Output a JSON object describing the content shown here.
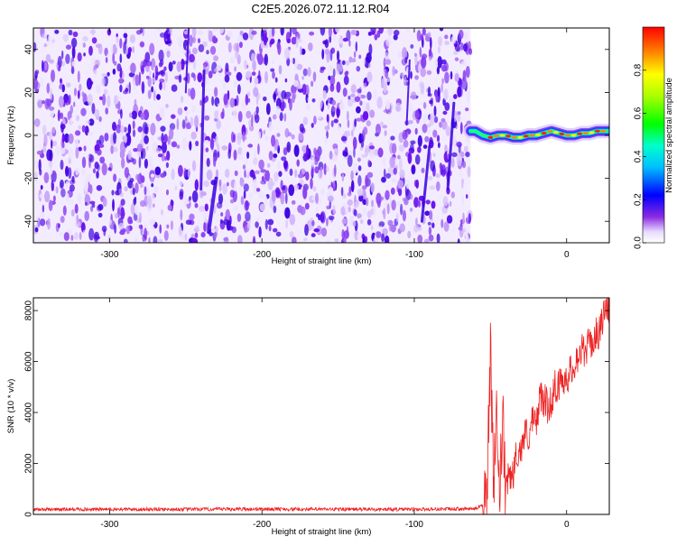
{
  "title": "C2E5.2026.072.11.12.R04",
  "colors": {
    "snr_line": "#ee2222",
    "spectrogram_noise": "#6a10ee",
    "spectrogram_noise_light": "#d9c4fb"
  },
  "chart_data": [
    {
      "type": "heatmap",
      "title": "C2E5.2026.072.11.12.R04",
      "xlabel": "Height of straight line (km)",
      "ylabel": "Frequency (Hz)",
      "xlim": [
        -350,
        28
      ],
      "ylim": [
        -50,
        50
      ],
      "x_ticks": [
        "-300",
        "-200",
        "-100",
        "0"
      ],
      "y_ticks": [
        "-40",
        "-20",
        "0",
        "20",
        "40"
      ],
      "grid": false,
      "noise_region_x": [
        -350,
        -63
      ],
      "signal_track": {
        "x": [
          -63,
          -60,
          -55,
          -50,
          -45,
          -40,
          -35,
          -30,
          -25,
          -20,
          -15,
          -10,
          -5,
          0,
          5,
          10,
          15,
          20,
          28
        ],
        "frequency_hz": [
          2,
          2,
          0,
          -1,
          0,
          0,
          -1,
          -1,
          0,
          0,
          1,
          2,
          1,
          0,
          0,
          1,
          1,
          2,
          2
        ]
      },
      "colorbar": {
        "label": "Normalized spectral amplitude",
        "range": [
          0,
          1
        ],
        "ticks": [
          "0.0",
          "0.2",
          "0.4",
          "0.6",
          "0.8"
        ],
        "colormap": "rainbow"
      }
    },
    {
      "type": "line",
      "xlabel": "Height of straight line (km)",
      "ylabel": "SNR (10 * v/v)",
      "xlim": [
        -350,
        28
      ],
      "ylim": [
        0,
        8500
      ],
      "x_ticks": [
        "-300",
        "-200",
        "-100",
        "0"
      ],
      "y_ticks": [
        "0",
        "2000",
        "4000",
        "6000",
        "8000"
      ],
      "grid": false,
      "series": [
        {
          "color": "#ee2222",
          "x": [
            -350,
            -300,
            -250,
            -200,
            -150,
            -100,
            -60,
            -55,
            -52,
            -50,
            -48,
            -46,
            -44,
            -42,
            -40,
            -38,
            -35,
            -32,
            -30,
            -28,
            -25,
            -22,
            -20,
            -18,
            -15,
            -12,
            -10,
            -8,
            -5,
            -2,
            0,
            3,
            6,
            10,
            14,
            18,
            22,
            25,
            28
          ],
          "values": [
            200,
            200,
            200,
            210,
            200,
            200,
            220,
            400,
            1500,
            6300,
            1200,
            3500,
            800,
            3800,
            700,
            1500,
            1600,
            2600,
            2400,
            3200,
            3100,
            3700,
            3400,
            4600,
            4500,
            4200,
            4400,
            5100,
            5000,
            5400,
            5400,
            5600,
            6100,
            6400,
            6600,
            6900,
            7300,
            7900,
            8200
          ]
        }
      ]
    }
  ]
}
